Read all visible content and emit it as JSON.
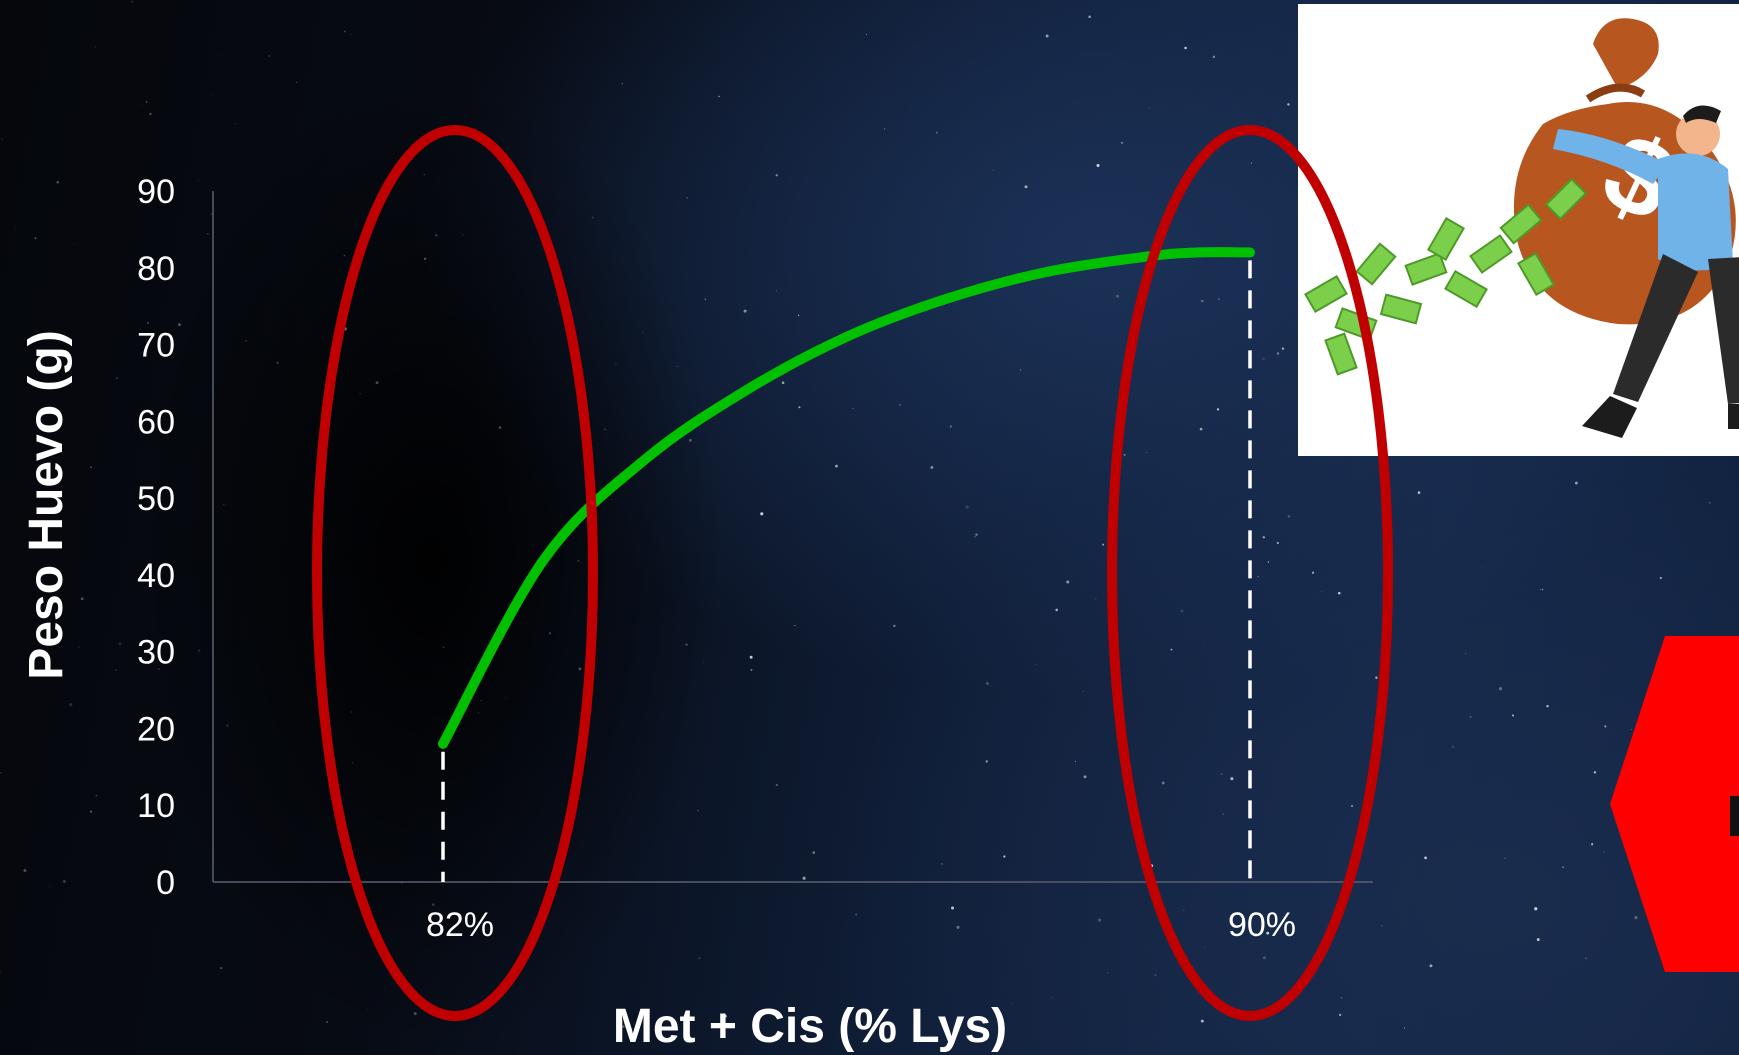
{
  "chart_data": {
    "type": "line",
    "xlabel": "Met + Cis (% Lys)",
    "ylabel": "Peso Huevo (g)",
    "ylim": [
      0,
      90
    ],
    "y_ticks": [
      "0",
      "10",
      "20",
      "30",
      "40",
      "50",
      "60",
      "70",
      "80",
      "90"
    ],
    "x_ticks": [
      "82%",
      "90%"
    ],
    "x": [
      82,
      83,
      84,
      85,
      86,
      87,
      88,
      89,
      89.5,
      90
    ],
    "y": [
      18,
      42,
      55,
      64,
      71,
      76,
      79.5,
      81.5,
      82,
      82
    ],
    "grid": false,
    "series": [
      {
        "values": [
          18,
          42,
          55,
          64,
          71,
          76,
          79.5,
          81.5,
          82,
          82
        ]
      }
    ],
    "annotations": [
      "82%",
      "90%"
    ],
    "colors": {
      "line": "#00c000",
      "ellipse": "#c00000",
      "dashed": "#ffffff"
    }
  },
  "illustration": {
    "icon": "money-bag-man-icon",
    "symbol": "$"
  }
}
